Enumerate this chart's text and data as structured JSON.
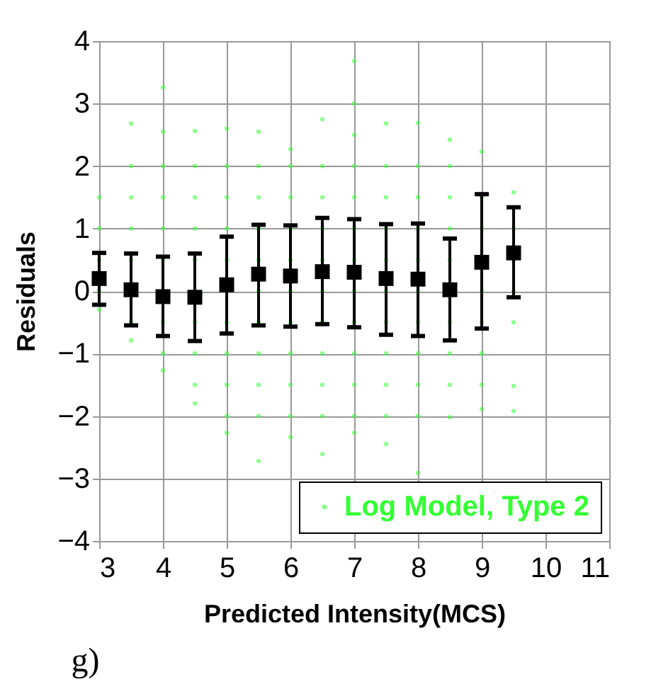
{
  "chart_data": {
    "type": "scatter",
    "xlabel": "Predicted Intensity(MCS)",
    "ylabel": "Residuals",
    "annotations": [
      "g)"
    ],
    "xlim": [
      3,
      11
    ],
    "xticks": [
      3,
      4,
      5,
      6,
      7,
      8,
      9,
      10,
      11
    ],
    "ylim": [
      -4,
      4
    ],
    "yticks": [
      -4,
      -3,
      -2,
      -1,
      0,
      1,
      2,
      3,
      4
    ],
    "grid": true,
    "legend": "bottom right",
    "series": [
      {
        "name": "Log Model, Type 2",
        "color": "#33ff33",
        "marker": "circle",
        "x": [
          3,
          3,
          3,
          3,
          3,
          3.5,
          3.5,
          3.5,
          3.5,
          3.5,
          3.5,
          3.5,
          4,
          4,
          4,
          4,
          4,
          4,
          4,
          4,
          4,
          4.5,
          4.5,
          4.5,
          4.5,
          4.5,
          4.5,
          4.5,
          4.5,
          4.5,
          4.5,
          5,
          5,
          5,
          5,
          5,
          5,
          5,
          5,
          5,
          5,
          5,
          5.5,
          5.5,
          5.5,
          5.5,
          5.5,
          5.5,
          5.5,
          5.5,
          5.5,
          5.5,
          5.5,
          6,
          6,
          6,
          6,
          6,
          6,
          6,
          6,
          6,
          6,
          6,
          6.5,
          6.5,
          6.5,
          6.5,
          6.5,
          6.5,
          6.5,
          6.5,
          6.5,
          6.5,
          6.5,
          7,
          7,
          7,
          7,
          7,
          7,
          7,
          7,
          7,
          7,
          7,
          7,
          7,
          7.5,
          7.5,
          7.5,
          7.5,
          7.5,
          7.5,
          7.5,
          7.5,
          7.5,
          7.5,
          7.5,
          8,
          8,
          8,
          8,
          8,
          8,
          8,
          8,
          8,
          8,
          8,
          8.5,
          8.5,
          8.5,
          8.5,
          8.5,
          8.5,
          8.5,
          8.5,
          8.5,
          9,
          9,
          9,
          9,
          9,
          9,
          9,
          9,
          9.5,
          9.5,
          9.5,
          9.5,
          9.5,
          9.5,
          9.5
        ],
        "values": [
          1.5,
          1,
          0.5,
          0,
          -0.3,
          2.68,
          2,
          1.5,
          1,
          0.5,
          -0.5,
          -0.79,
          3.26,
          2.55,
          2,
          1.5,
          1,
          0.5,
          -0.5,
          -1,
          -1.27,
          2.56,
          2,
          1.5,
          1,
          0.5,
          0,
          -0.5,
          -1,
          -1.5,
          -1.8,
          2.6,
          2,
          1.5,
          1,
          0.5,
          0,
          -0.5,
          -1,
          -1.5,
          -2,
          -2.27,
          2.55,
          2,
          1.5,
          1,
          0.5,
          0,
          -0.5,
          -1,
          -1.5,
          -2,
          -2.72,
          2.27,
          2,
          1.5,
          1,
          0.5,
          0,
          -0.5,
          -1,
          -1.5,
          -2,
          -2.34,
          2.75,
          2,
          1.5,
          1,
          0.5,
          0,
          -0.5,
          -1,
          -1.5,
          -2,
          -2.61,
          3.68,
          3,
          2.5,
          2,
          1.5,
          1,
          0.5,
          0,
          -0.5,
          -1,
          -1.5,
          -2,
          -2.27,
          2.68,
          2,
          1.5,
          1,
          0.5,
          0,
          -0.5,
          -1,
          -1.5,
          -2,
          -2.45,
          2.69,
          2,
          1.5,
          1,
          0.5,
          0,
          -0.5,
          -1,
          -1.5,
          -2,
          -2.91,
          2.42,
          2,
          1.5,
          1,
          0.5,
          -0.5,
          -1,
          -1.5,
          -2.02,
          2.23,
          1.5,
          1,
          0,
          -0.5,
          -1,
          -1.5,
          -1.89,
          1.58,
          1,
          0.5,
          0,
          -0.5,
          -1.52,
          -1.92
        ]
      },
      {
        "color": "#000000",
        "marker": "square",
        "x": [
          3,
          3.5,
          4,
          4.5,
          5,
          5.5,
          6,
          6.5,
          7,
          7.5,
          8,
          8.5,
          9,
          9.5
        ],
        "values": [
          0.2,
          0.02,
          -0.09,
          -0.1,
          0.1,
          0.27,
          0.24,
          0.31,
          0.3,
          0.2,
          0.19,
          0.02,
          0.46,
          0.61
        ],
        "errors": [
          [
            -0.22,
            0.61
          ],
          [
            -0.55,
            0.6
          ],
          [
            -0.72,
            0.55
          ],
          [
            -0.8,
            0.6
          ],
          [
            -0.68,
            0.87
          ],
          [
            -0.55,
            1.06
          ],
          [
            -0.57,
            1.05
          ],
          [
            -0.53,
            1.17
          ],
          [
            -0.58,
            1.15
          ],
          [
            -0.7,
            1.07
          ],
          [
            -0.72,
            1.08
          ],
          [
            -0.79,
            0.84
          ],
          [
            -0.6,
            1.55
          ],
          [
            -0.1,
            1.34
          ]
        ]
      }
    ]
  }
}
